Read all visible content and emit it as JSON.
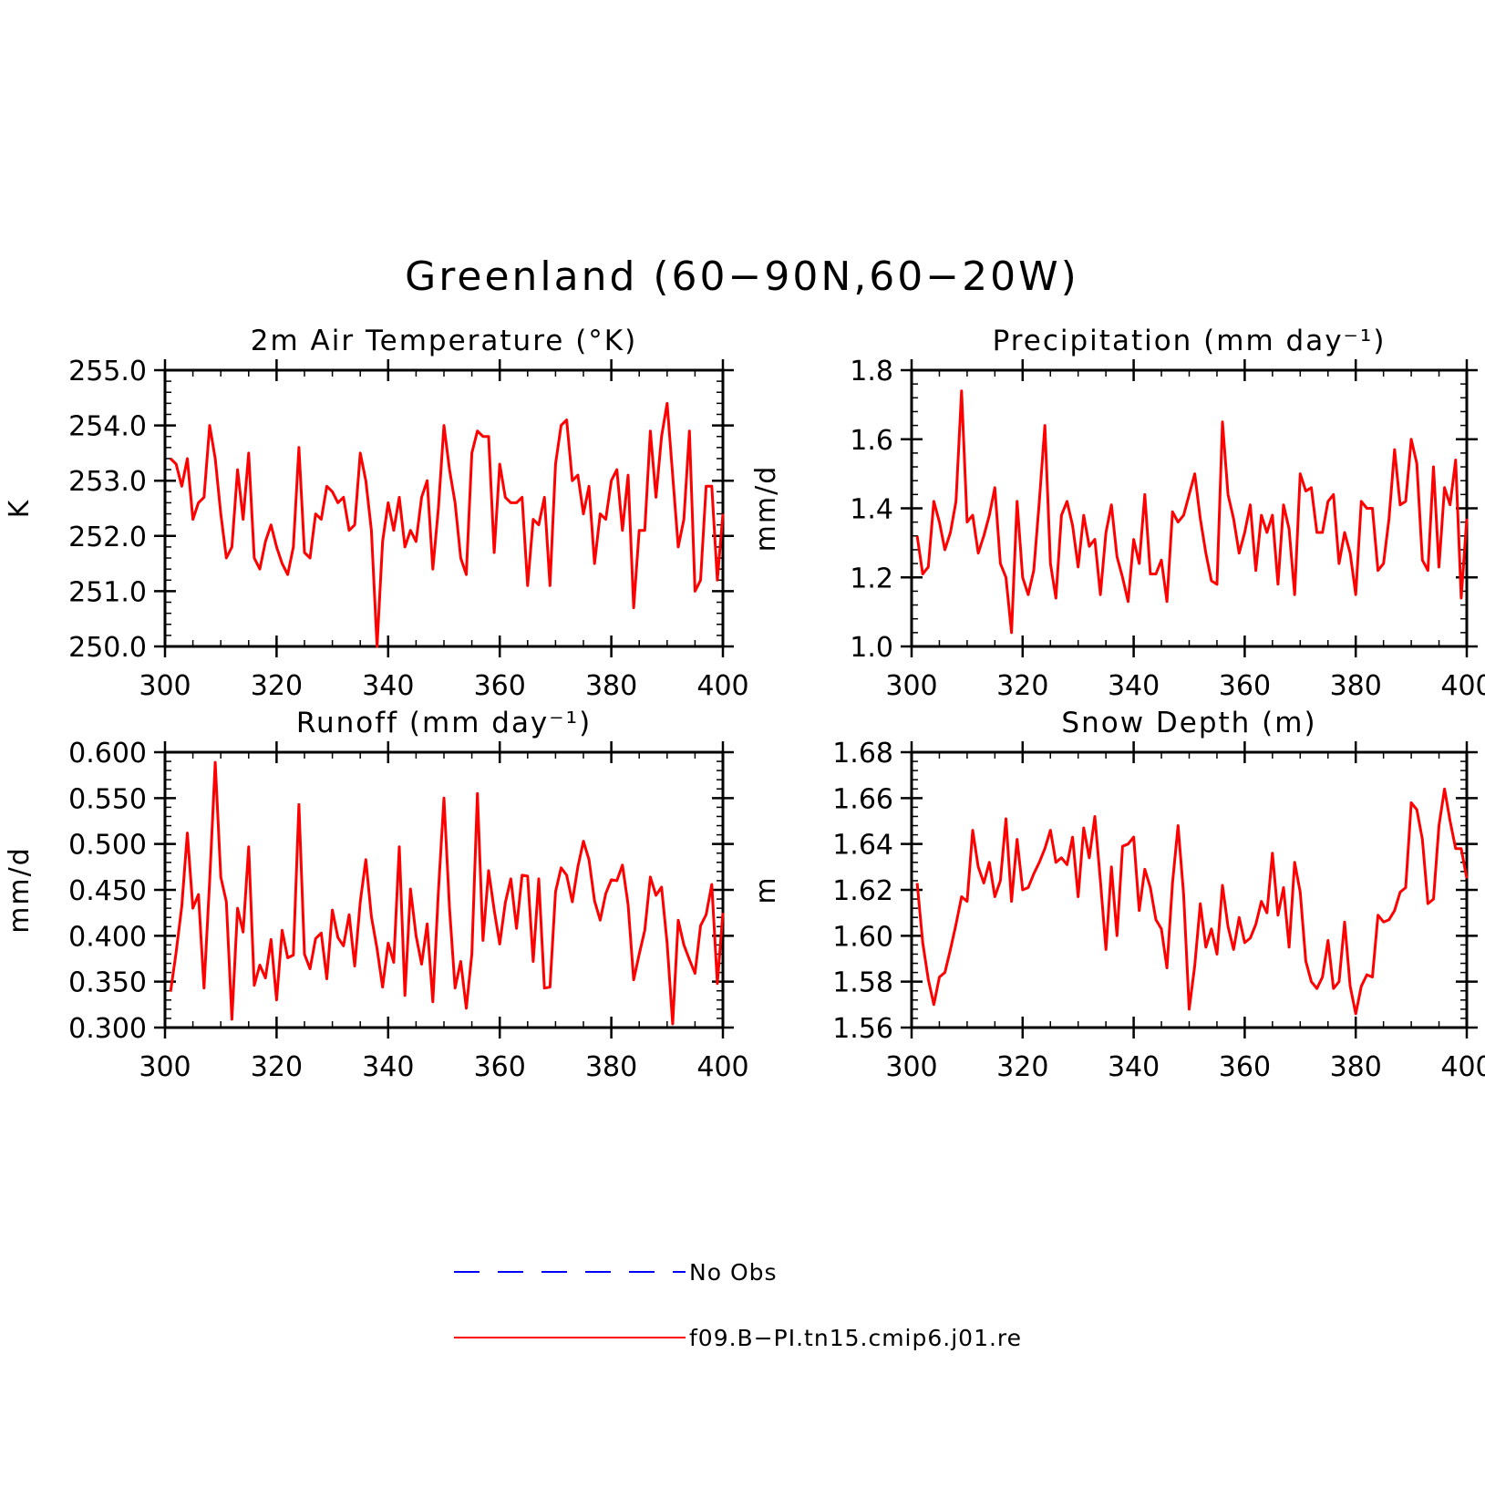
{
  "title": "Greenland (60−90N,60−20W)",
  "colors": {
    "model": "#ff0000",
    "obs": "#0000ff",
    "axis": "#000000"
  },
  "legend": [
    {
      "label": "No Obs",
      "color": "#0000ff",
      "style": "dashed"
    },
    {
      "label": "f09.B−PI.tn15.cmip6.j01.re",
      "color": "#ff0000",
      "style": "solid"
    }
  ],
  "chart_data": [
    {
      "type": "line",
      "title": "2m Air Temperature (°K)",
      "xlabel": "",
      "ylabel": "K",
      "xlim": [
        300,
        400
      ],
      "ylim": [
        250.0,
        255.0
      ],
      "xticks": [
        "300",
        "320",
        "340",
        "360",
        "380",
        "400"
      ],
      "yticks": [
        "250.0",
        "251.0",
        "252.0",
        "253.0",
        "254.0",
        "255.0"
      ],
      "x_start": 301,
      "series": [
        {
          "name": "f09.B−PI.tn15.cmip6.j01.re",
          "values": [
            253.4,
            253.3,
            252.9,
            253.4,
            252.3,
            252.6,
            252.7,
            254.0,
            253.4,
            252.4,
            251.6,
            251.8,
            253.2,
            252.3,
            253.5,
            251.6,
            251.4,
            251.9,
            252.2,
            251.8,
            251.5,
            251.3,
            251.8,
            253.6,
            251.7,
            251.6,
            252.4,
            252.3,
            252.9,
            252.8,
            252.6,
            252.7,
            252.1,
            252.2,
            253.5,
            253.0,
            252.1,
            250.0,
            251.9,
            252.6,
            252.1,
            252.7,
            251.8,
            252.1,
            251.9,
            252.7,
            253.0,
            251.4,
            252.5,
            254.0,
            253.2,
            252.6,
            251.6,
            251.3,
            253.5,
            253.9,
            253.8,
            253.8,
            251.7,
            253.3,
            252.7,
            252.6,
            252.6,
            252.7,
            251.1,
            252.3,
            252.2,
            252.7,
            251.1,
            253.3,
            254.0,
            254.1,
            253.0,
            253.1,
            252.4,
            252.9,
            251.5,
            252.4,
            252.3,
            253.0,
            253.2,
            252.1,
            253.1,
            250.7,
            252.1,
            252.1,
            253.9,
            252.7,
            253.8,
            254.4,
            253.1,
            251.8,
            252.3,
            253.9,
            251.0,
            251.2,
            252.9,
            252.9,
            251.2,
            252.4
          ]
        }
      ]
    },
    {
      "type": "line",
      "title": "Precipitation (mm day⁻¹)",
      "xlabel": "",
      "ylabel": "mm/d",
      "xlim": [
        300,
        400
      ],
      "ylim": [
        1.0,
        1.8
      ],
      "xticks": [
        "300",
        "320",
        "340",
        "360",
        "380",
        "400"
      ],
      "yticks": [
        "1.0",
        "1.2",
        "1.4",
        "1.6",
        "1.8"
      ],
      "x_start": 301,
      "series": [
        {
          "name": "f09.B−PI.tn15.cmip6.j01.re",
          "values": [
            1.32,
            1.21,
            1.23,
            1.42,
            1.36,
            1.28,
            1.33,
            1.42,
            1.74,
            1.36,
            1.38,
            1.27,
            1.32,
            1.38,
            1.46,
            1.24,
            1.2,
            1.04,
            1.42,
            1.2,
            1.15,
            1.22,
            1.42,
            1.64,
            1.24,
            1.14,
            1.38,
            1.42,
            1.35,
            1.23,
            1.38,
            1.29,
            1.31,
            1.15,
            1.33,
            1.41,
            1.26,
            1.2,
            1.13,
            1.31,
            1.24,
            1.44,
            1.21,
            1.21,
            1.25,
            1.13,
            1.39,
            1.36,
            1.38,
            1.44,
            1.5,
            1.37,
            1.27,
            1.19,
            1.18,
            1.65,
            1.44,
            1.37,
            1.27,
            1.33,
            1.41,
            1.22,
            1.38,
            1.33,
            1.38,
            1.18,
            1.41,
            1.34,
            1.15,
            1.5,
            1.45,
            1.46,
            1.33,
            1.33,
            1.42,
            1.44,
            1.24,
            1.33,
            1.27,
            1.15,
            1.42,
            1.4,
            1.4,
            1.22,
            1.24,
            1.37,
            1.57,
            1.41,
            1.42,
            1.6,
            1.53,
            1.25,
            1.22,
            1.52,
            1.23,
            1.46,
            1.41,
            1.54,
            1.14,
            1.37
          ]
        }
      ]
    },
    {
      "type": "line",
      "title": "Runoff (mm day⁻¹)",
      "xlabel": "",
      "ylabel": "mm/d",
      "xlim": [
        300,
        400
      ],
      "ylim": [
        0.3,
        0.6
      ],
      "xticks": [
        "300",
        "320",
        "340",
        "360",
        "380",
        "400"
      ],
      "yticks": [
        "0.300",
        "0.350",
        "0.400",
        "0.450",
        "0.500",
        "0.550",
        "0.600"
      ],
      "x_start": 301,
      "series": [
        {
          "name": "f09.B−PI.tn15.cmip6.j01.re",
          "values": [
            0.339,
            0.382,
            0.432,
            0.512,
            0.43,
            0.445,
            0.343,
            0.46,
            0.589,
            0.464,
            0.437,
            0.309,
            0.43,
            0.404,
            0.497,
            0.346,
            0.368,
            0.354,
            0.396,
            0.33,
            0.406,
            0.376,
            0.379,
            0.543,
            0.38,
            0.364,
            0.397,
            0.403,
            0.353,
            0.428,
            0.398,
            0.389,
            0.423,
            0.367,
            0.437,
            0.483,
            0.421,
            0.386,
            0.344,
            0.392,
            0.371,
            0.497,
            0.335,
            0.451,
            0.4,
            0.369,
            0.413,
            0.328,
            0.448,
            0.55,
            0.43,
            0.343,
            0.372,
            0.321,
            0.38,
            0.555,
            0.395,
            0.471,
            0.428,
            0.391,
            0.436,
            0.462,
            0.408,
            0.466,
            0.465,
            0.372,
            0.462,
            0.343,
            0.344,
            0.448,
            0.474,
            0.466,
            0.437,
            0.475,
            0.503,
            0.483,
            0.438,
            0.417,
            0.446,
            0.461,
            0.46,
            0.477,
            0.434,
            0.352,
            0.38,
            0.406,
            0.464,
            0.444,
            0.453,
            0.392,
            0.304,
            0.417,
            0.39,
            0.374,
            0.359,
            0.411,
            0.423,
            0.456,
            0.348,
            0.425
          ]
        }
      ]
    },
    {
      "type": "line",
      "title": "Snow Depth (m)",
      "xlabel": "",
      "ylabel": "m",
      "xlim": [
        300,
        400
      ],
      "ylim": [
        1.56,
        1.68
      ],
      "xticks": [
        "300",
        "320",
        "340",
        "360",
        "380",
        "400"
      ],
      "yticks": [
        "1.56",
        "1.58",
        "1.60",
        "1.62",
        "1.64",
        "1.66",
        "1.68"
      ],
      "x_start": 301,
      "series": [
        {
          "name": "f09.B−PI.tn15.cmip6.j01.re",
          "values": [
            1.623,
            1.597,
            1.581,
            1.57,
            1.582,
            1.584,
            1.594,
            1.605,
            1.617,
            1.615,
            1.646,
            1.63,
            1.623,
            1.632,
            1.617,
            1.624,
            1.651,
            1.615,
            1.642,
            1.62,
            1.621,
            1.627,
            1.632,
            1.638,
            1.646,
            1.632,
            1.634,
            1.631,
            1.643,
            1.617,
            1.647,
            1.634,
            1.652,
            1.624,
            1.594,
            1.63,
            1.6,
            1.639,
            1.64,
            1.643,
            1.611,
            1.629,
            1.621,
            1.607,
            1.603,
            1.586,
            1.623,
            1.648,
            1.618,
            1.568,
            1.587,
            1.614,
            1.595,
            1.603,
            1.592,
            1.622,
            1.604,
            1.594,
            1.608,
            1.597,
            1.599,
            1.605,
            1.615,
            1.61,
            1.636,
            1.609,
            1.621,
            1.595,
            1.632,
            1.619,
            1.589,
            1.58,
            1.577,
            1.582,
            1.598,
            1.577,
            1.58,
            1.606,
            1.578,
            1.566,
            1.578,
            1.583,
            1.582,
            1.609,
            1.606,
            1.607,
            1.611,
            1.619,
            1.621,
            1.658,
            1.655,
            1.642,
            1.614,
            1.616,
            1.648,
            1.664,
            1.65,
            1.638,
            1.638,
            1.625
          ]
        }
      ]
    }
  ]
}
